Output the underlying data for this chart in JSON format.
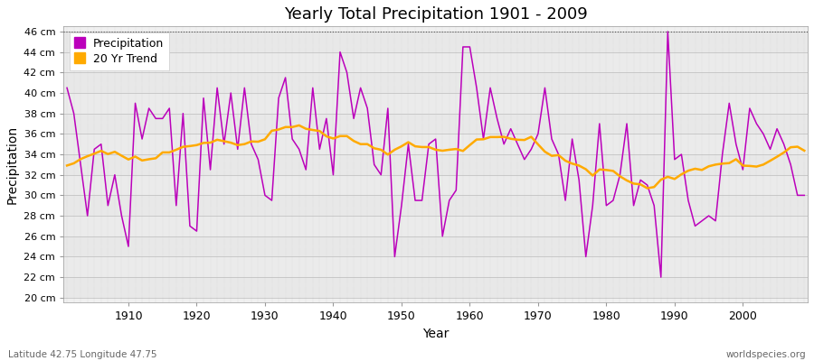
{
  "title": "Yearly Total Precipitation 1901 - 2009",
  "xlabel": "Year",
  "ylabel": "Precipitation",
  "lat_lon_label": "Latitude 42.75 Longitude 47.75",
  "source_label": "worldspecies.org",
  "bg_color": "#ffffff",
  "plot_bg_color": "#f0f0f0",
  "band_color1": "#e8e8e8",
  "band_color2": "#ebebeb",
  "precip_color": "#bb00bb",
  "trend_color": "#ffaa00",
  "years": [
    1901,
    1902,
    1903,
    1904,
    1905,
    1906,
    1907,
    1908,
    1909,
    1910,
    1911,
    1912,
    1913,
    1914,
    1915,
    1916,
    1917,
    1918,
    1919,
    1920,
    1921,
    1922,
    1923,
    1924,
    1925,
    1926,
    1927,
    1928,
    1929,
    1930,
    1931,
    1932,
    1933,
    1934,
    1935,
    1936,
    1937,
    1938,
    1939,
    1940,
    1941,
    1942,
    1943,
    1944,
    1945,
    1946,
    1947,
    1948,
    1949,
    1950,
    1951,
    1952,
    1953,
    1954,
    1955,
    1956,
    1957,
    1958,
    1959,
    1960,
    1961,
    1962,
    1963,
    1964,
    1965,
    1966,
    1967,
    1968,
    1969,
    1970,
    1971,
    1972,
    1973,
    1974,
    1975,
    1976,
    1977,
    1978,
    1979,
    1980,
    1981,
    1982,
    1983,
    1984,
    1985,
    1986,
    1987,
    1988,
    1989,
    1990,
    1991,
    1992,
    1993,
    1994,
    1995,
    1996,
    1997,
    1998,
    1999,
    2000,
    2001,
    2002,
    2003,
    2004,
    2005,
    2006,
    2007,
    2008,
    2009
  ],
  "precip": [
    40.5,
    38.0,
    33.0,
    28.0,
    34.5,
    35.0,
    29.0,
    32.0,
    28.0,
    25.0,
    39.0,
    35.5,
    38.5,
    37.5,
    37.5,
    38.5,
    29.0,
    38.0,
    27.0,
    26.5,
    39.5,
    32.5,
    40.5,
    35.0,
    40.0,
    34.5,
    40.5,
    35.0,
    33.5,
    30.0,
    29.5,
    39.5,
    41.5,
    35.5,
    34.5,
    32.5,
    40.5,
    34.5,
    37.5,
    32.0,
    44.0,
    42.0,
    37.5,
    40.5,
    38.5,
    33.0,
    32.0,
    38.5,
    24.0,
    29.0,
    35.0,
    29.5,
    29.5,
    35.0,
    35.5,
    26.0,
    29.5,
    30.5,
    44.5,
    44.5,
    40.5,
    35.5,
    40.5,
    37.5,
    35.0,
    36.5,
    35.0,
    33.5,
    34.5,
    36.0,
    40.5,
    35.5,
    34.0,
    29.5,
    35.5,
    31.5,
    24.0,
    29.0,
    37.0,
    29.0,
    29.5,
    32.0,
    37.0,
    29.0,
    31.5,
    31.0,
    29.0,
    22.0,
    46.0,
    33.5,
    34.0,
    29.5,
    27.0,
    27.5,
    28.0,
    27.5,
    34.0,
    39.0,
    35.0,
    32.5,
    38.5,
    37.0,
    36.0,
    34.5,
    36.5,
    35.0,
    33.0,
    30.0,
    30.0
  ],
  "ylim": [
    19.5,
    46.5
  ],
  "yticks": [
    20,
    22,
    24,
    26,
    28,
    30,
    32,
    34,
    36,
    38,
    40,
    42,
    44,
    46
  ],
  "xlim": [
    1900.5,
    2009.5
  ],
  "xticks": [
    1910,
    1920,
    1930,
    1940,
    1950,
    1960,
    1970,
    1980,
    1990,
    2000
  ],
  "hline_y": 46,
  "trend_window": 20
}
